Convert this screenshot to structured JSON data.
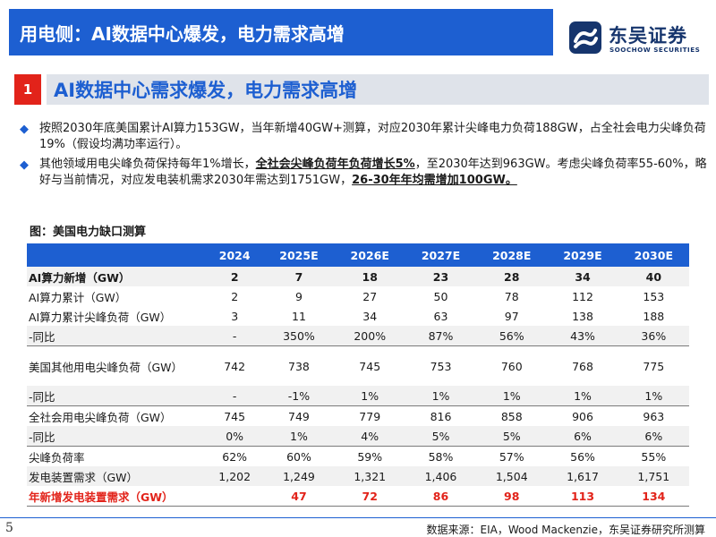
{
  "header": {
    "title": "用电侧：AI数据中心爆发，电力需求高增"
  },
  "logo": {
    "cn_name": "东吴证券",
    "en_name": "SOOCHOW SECURITIES"
  },
  "section": {
    "number": "1",
    "title": "AI数据中心需求爆发，电力需求高增"
  },
  "bullets": [
    {
      "text": "按照2030年底美国累计AI算力153GW，当年新增40GW+测算，对应2030年累计尖峰电力负荷188GW，占全社会电力尖峰负荷19%（假设均满功率运行）。"
    },
    {
      "part1": "其他领域用电尖峰负荷保持每年1%增长，",
      "em1": "全社会尖峰负荷年负荷增长5%",
      "part2": "，至2030年达到963GW。考虑尖峰负荷率55-60%，略好与当前情况，对应发电装机需求2030年需达到1751GW，",
      "em2": "26-30年年均需增加100GW。"
    }
  ],
  "figure": {
    "caption": "图：美国电力缺口测算"
  },
  "table": {
    "headers": [
      "",
      "2024",
      "2025E",
      "2026E",
      "2027E",
      "2028E",
      "2029E",
      "2030E"
    ],
    "rows": [
      {
        "label": "AI算力新增（GW）",
        "values": [
          "2",
          "7",
          "18",
          "23",
          "28",
          "34",
          "40"
        ]
      },
      {
        "label": "AI算力累计（GW）",
        "values": [
          "2",
          "9",
          "27",
          "50",
          "78",
          "112",
          "153"
        ]
      },
      {
        "label": "AI算力累计尖峰负荷（GW）",
        "values": [
          "3",
          "11",
          "34",
          "63",
          "97",
          "138",
          "188"
        ]
      },
      {
        "label": "-同比",
        "values": [
          "-",
          "350%",
          "200%",
          "87%",
          "56%",
          "43%",
          "36%"
        ]
      },
      {
        "label": "美国其他用电尖峰负荷（GW）",
        "values": [
          "742",
          "738",
          "745",
          "753",
          "760",
          "768",
          "775"
        ]
      },
      {
        "label": "-同比",
        "values": [
          "-",
          "-1%",
          "1%",
          "1%",
          "1%",
          "1%",
          "1%"
        ]
      },
      {
        "label": "全社会用电尖峰负荷（GW）",
        "values": [
          "745",
          "749",
          "779",
          "816",
          "858",
          "906",
          "963"
        ]
      },
      {
        "label": "-同比",
        "values": [
          "0%",
          "1%",
          "4%",
          "5%",
          "5%",
          "6%",
          "6%"
        ]
      },
      {
        "label": "尖峰负荷率",
        "values": [
          "62%",
          "60%",
          "59%",
          "58%",
          "57%",
          "56%",
          "55%"
        ]
      },
      {
        "label": "发电装置需求（GW）",
        "values": [
          "1,202",
          "1,249",
          "1,321",
          "1,406",
          "1,504",
          "1,617",
          "1,751"
        ]
      },
      {
        "label": "年新增发电装置需求（GW）",
        "values": [
          "",
          "47",
          "72",
          "86",
          "98",
          "113",
          "134"
        ]
      }
    ]
  },
  "footer": {
    "page_number": "5",
    "source": "数据来源：EIA，Wood Mackenzie，东吴证券研究所测算"
  },
  "colors": {
    "brand_blue": "#1d5fd1",
    "accent_red": "#e2231a",
    "logo_navy": "#16356d"
  },
  "icons": {
    "bullet": "diamond-bullet-icon",
    "logo": "soochow-logo-icon"
  }
}
